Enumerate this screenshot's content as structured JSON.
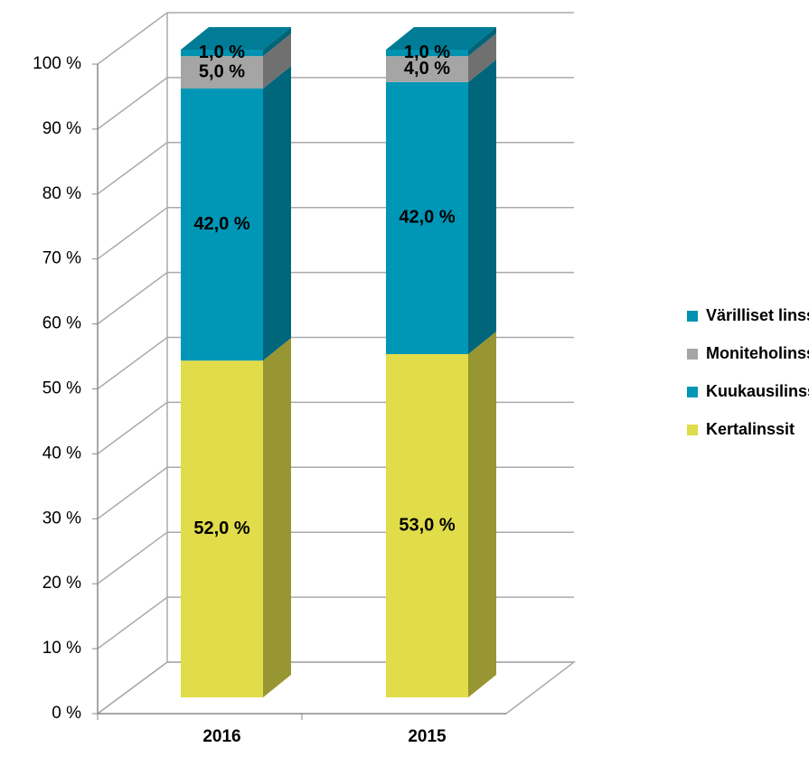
{
  "chart_data": {
    "type": "bar3d_stacked",
    "categories": [
      "2016",
      "2015"
    ],
    "series": [
      {
        "name": "Kertalinssit",
        "color": "#e0dc4a",
        "values": [
          52,
          53
        ],
        "value_labels": [
          "52,0 %",
          "53,0 %"
        ]
      },
      {
        "name": "Kuukausilinssit",
        "color": "#0096b6",
        "values": [
          42,
          42
        ],
        "value_labels": [
          "42,0 %",
          "42,0 %"
        ]
      },
      {
        "name": "Moniteholinssit",
        "color": "#a5a5a5",
        "values": [
          5,
          4
        ],
        "value_labels": [
          "5,0 %",
          "4,0 %"
        ]
      },
      {
        "name": "Värilliset linssit",
        "color": "#0092b0",
        "values": [
          1,
          1
        ],
        "value_labels": [
          "1,0 %",
          "1,0 %"
        ]
      }
    ],
    "ylim": [
      0,
      100
    ],
    "yticks": [
      {
        "value": 0,
        "label": "0 %"
      },
      {
        "value": 10,
        "label": "10 %"
      },
      {
        "value": 20,
        "label": "20 %"
      },
      {
        "value": 30,
        "label": "30 %"
      },
      {
        "value": 40,
        "label": "40 %"
      },
      {
        "value": 50,
        "label": "50 %"
      },
      {
        "value": 60,
        "label": "60 %"
      },
      {
        "value": 70,
        "label": "70 %"
      },
      {
        "value": 80,
        "label": "80 %"
      },
      {
        "value": 90,
        "label": "90 %"
      },
      {
        "value": 100,
        "label": "100 %"
      }
    ],
    "grid": true,
    "legend": "right"
  }
}
